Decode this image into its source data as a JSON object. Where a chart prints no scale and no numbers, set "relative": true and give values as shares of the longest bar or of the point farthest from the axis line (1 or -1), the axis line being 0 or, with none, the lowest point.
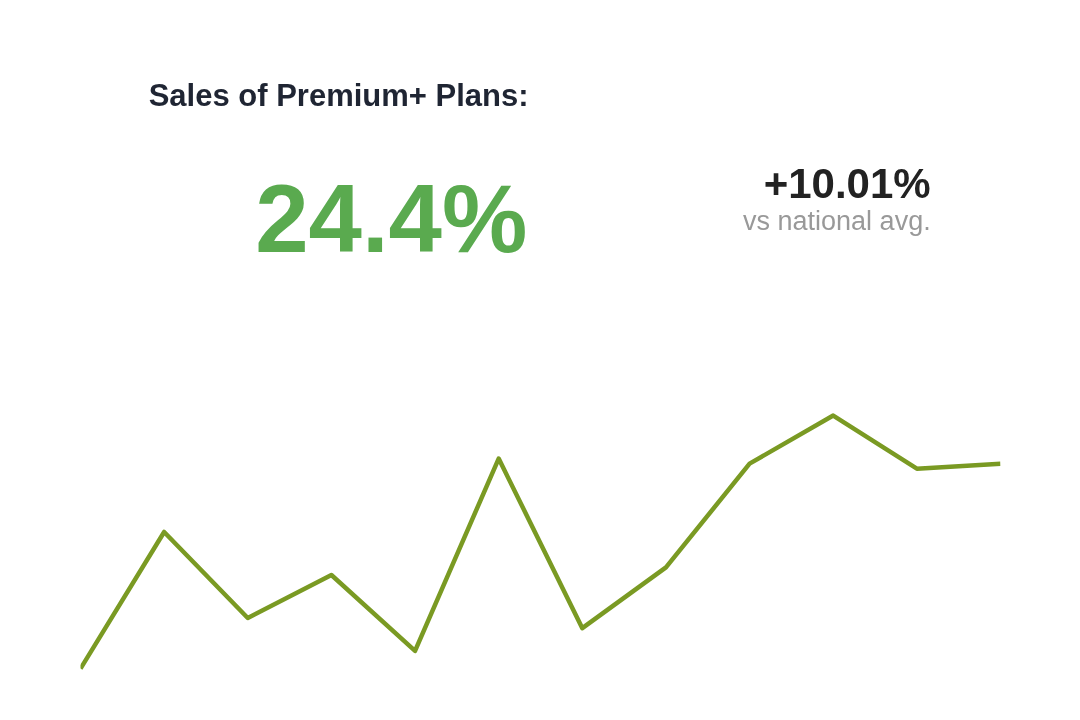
{
  "chart_data": {
    "type": "line",
    "title": "Sales of Premium+ Plans:",
    "annotations": [
      "24.4%",
      "+10.01%",
      "vs national avg."
    ],
    "relative": true,
    "tick_labels": false,
    "grid": false,
    "categories": [
      null,
      null,
      null,
      null,
      null,
      null,
      null,
      null,
      null,
      null,
      null,
      null
    ],
    "series": [
      {
        "color": "#7a9a23",
        "values": [
          0,
          0.54,
          0.2,
          0.37,
          0.07,
          0.83,
          0.16,
          0.4,
          0.81,
          1,
          0.79,
          0.81
        ]
      }
    ]
  }
}
